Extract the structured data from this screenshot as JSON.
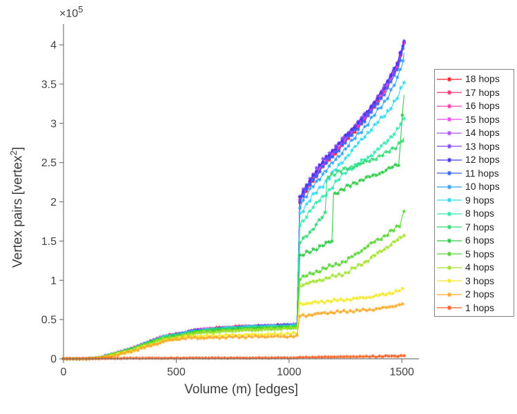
{
  "axes": {
    "xlabel": "Volume (m) [edges]",
    "ylabel_main": "Vertex pairs [vertex",
    "ylabel_sup": "2",
    "ylabel_close": "]",
    "exponent_label": "×10",
    "exponent_power": "5"
  },
  "chart_data": {
    "type": "line",
    "title": "",
    "xlabel": "Volume (m) [edges]",
    "ylabel": "Vertex pairs [vertex^2]",
    "y_scale_factor": "1e5",
    "xlim": [
      0,
      1576
    ],
    "ylim": [
      0,
      4.264
    ],
    "grid": false,
    "legend_position": "right",
    "marker": "asterisk",
    "xticks": [
      0,
      500,
      1000,
      1500
    ],
    "yticks": [
      0,
      0.5,
      1,
      1.5,
      2,
      2.5,
      3,
      3.5,
      4
    ],
    "base_curve": [
      [
        0,
        0
      ],
      [
        100,
        0
      ],
      [
        150,
        0.01
      ],
      [
        200,
        0.04
      ],
      [
        250,
        0.08
      ],
      [
        300,
        0.12
      ],
      [
        345,
        0.17
      ],
      [
        400,
        0.23
      ],
      [
        450,
        0.28
      ],
      [
        520,
        0.31
      ],
      [
        575,
        0.35
      ],
      [
        650,
        0.37
      ],
      [
        720,
        0.385
      ],
      [
        800,
        0.4
      ],
      [
        900,
        0.41
      ],
      [
        1000,
        0.42
      ],
      [
        1035,
        0.425
      ]
    ],
    "series": [
      {
        "hops": 18,
        "label": "18 hops",
        "color": "#fa1e28",
        "pre_factor": 1.018,
        "post": [
          [
            1048,
            2.0
          ],
          [
            1100,
            2.26
          ],
          [
            1150,
            2.45
          ],
          [
            1250,
            2.77
          ],
          [
            1350,
            3.1
          ],
          [
            1430,
            3.44
          ],
          [
            1480,
            3.72
          ],
          [
            1510,
            4.02
          ]
        ]
      },
      {
        "hops": 17,
        "label": "17 hops",
        "color": "#fa2e6e",
        "pre_factor": 1.016,
        "post": [
          [
            1048,
            2.01
          ],
          [
            1100,
            2.27
          ],
          [
            1150,
            2.46
          ],
          [
            1250,
            2.78
          ],
          [
            1350,
            3.11
          ],
          [
            1430,
            3.45
          ],
          [
            1480,
            3.73
          ],
          [
            1510,
            4.02
          ]
        ]
      },
      {
        "hops": 16,
        "label": "16 hops",
        "color": "#f53ab4",
        "pre_factor": 1.014,
        "post": [
          [
            1048,
            2.02
          ],
          [
            1100,
            2.28
          ],
          [
            1150,
            2.47
          ],
          [
            1250,
            2.79
          ],
          [
            1350,
            3.12
          ],
          [
            1430,
            3.46
          ],
          [
            1480,
            3.74
          ],
          [
            1510,
            4.03
          ]
        ]
      },
      {
        "hops": 15,
        "label": "15 hops",
        "color": "#ee46ee",
        "pre_factor": 1.012,
        "post": [
          [
            1048,
            2.03
          ],
          [
            1100,
            2.29
          ],
          [
            1150,
            2.48
          ],
          [
            1250,
            2.8
          ],
          [
            1350,
            3.13
          ],
          [
            1430,
            3.47
          ],
          [
            1480,
            3.74
          ],
          [
            1510,
            4.03
          ]
        ]
      },
      {
        "hops": 14,
        "label": "14 hops",
        "color": "#ae4ef5",
        "pre_factor": 1.01,
        "post": [
          [
            1048,
            2.04
          ],
          [
            1100,
            2.3
          ],
          [
            1150,
            2.5
          ],
          [
            1250,
            2.82
          ],
          [
            1350,
            3.14
          ],
          [
            1430,
            3.48
          ],
          [
            1480,
            3.75
          ],
          [
            1510,
            4.04
          ]
        ]
      },
      {
        "hops": 13,
        "label": "13 hops",
        "color": "#7c42f5",
        "pre_factor": 1.008,
        "post": [
          [
            1048,
            2.06
          ],
          [
            1100,
            2.32
          ],
          [
            1150,
            2.52
          ],
          [
            1250,
            2.84
          ],
          [
            1350,
            3.16
          ],
          [
            1430,
            3.5
          ],
          [
            1480,
            3.77
          ],
          [
            1510,
            4.05
          ]
        ]
      },
      {
        "hops": 12,
        "label": "12 hops",
        "color": "#4334f0",
        "pre_factor": 1.005,
        "post": [
          [
            1048,
            2.05
          ],
          [
            1100,
            2.31
          ],
          [
            1150,
            2.51
          ],
          [
            1250,
            2.83
          ],
          [
            1350,
            3.15
          ],
          [
            1430,
            3.49
          ],
          [
            1480,
            3.78
          ],
          [
            1505,
            4.0
          ],
          [
            1510,
            4.06
          ]
        ]
      },
      {
        "hops": 11,
        "label": "11 hops",
        "color": "#2e62f8",
        "pre_factor": 1.0,
        "post": [
          [
            1048,
            2.0
          ],
          [
            1100,
            2.26
          ],
          [
            1150,
            2.45
          ],
          [
            1250,
            2.77
          ],
          [
            1350,
            3.09
          ],
          [
            1430,
            3.41
          ],
          [
            1480,
            3.68
          ],
          [
            1505,
            3.94
          ],
          [
            1510,
            4.0
          ]
        ]
      },
      {
        "hops": 10,
        "label": "10 hops",
        "color": "#2e9ff2",
        "pre_factor": 0.995,
        "post": [
          [
            1048,
            1.95
          ],
          [
            1100,
            2.18
          ],
          [
            1150,
            2.36
          ],
          [
            1250,
            2.68
          ],
          [
            1350,
            3.0
          ],
          [
            1430,
            3.3
          ],
          [
            1480,
            3.56
          ],
          [
            1505,
            3.8
          ],
          [
            1510,
            3.9
          ]
        ]
      },
      {
        "hops": 9,
        "label": "9 hops",
        "color": "#2ed9f0",
        "pre_factor": 0.99,
        "post": [
          [
            1048,
            1.85
          ],
          [
            1100,
            2.06
          ],
          [
            1150,
            2.22
          ],
          [
            1250,
            2.56
          ],
          [
            1350,
            2.88
          ],
          [
            1430,
            3.12
          ],
          [
            1480,
            3.32
          ],
          [
            1510,
            3.52
          ]
        ]
      },
      {
        "hops": 8,
        "label": "8 hops",
        "color": "#2ee9ae",
        "pre_factor": 0.985,
        "post": [
          [
            1048,
            1.7
          ],
          [
            1100,
            1.92
          ],
          [
            1150,
            2.06
          ],
          [
            1250,
            2.38
          ],
          [
            1350,
            2.56
          ],
          [
            1430,
            2.75
          ],
          [
            1480,
            2.92
          ],
          [
            1510,
            3.06
          ]
        ]
      },
      {
        "hops": 7,
        "label": "7 hops",
        "color": "#2ed874",
        "pre_factor": 0.975,
        "post": [
          [
            1048,
            1.48
          ],
          [
            1100,
            1.64
          ],
          [
            1160,
            1.84
          ],
          [
            1168,
            2.32
          ],
          [
            1250,
            2.42
          ],
          [
            1350,
            2.52
          ],
          [
            1430,
            2.62
          ],
          [
            1480,
            2.72
          ],
          [
            1510,
            2.82
          ]
        ]
      },
      {
        "hops": 6,
        "label": "6 hops",
        "color": "#25c93e",
        "pre_factor": 0.96,
        "post": [
          [
            1048,
            1.3
          ],
          [
            1100,
            1.38
          ],
          [
            1150,
            1.44
          ],
          [
            1190,
            1.5
          ],
          [
            1197,
            2.1
          ],
          [
            1250,
            2.18
          ],
          [
            1300,
            2.26
          ],
          [
            1350,
            2.31
          ],
          [
            1430,
            2.4
          ],
          [
            1486,
            2.48
          ],
          [
            1494,
            2.76
          ],
          [
            1502,
            3.1
          ],
          [
            1510,
            3.36
          ]
        ]
      },
      {
        "hops": 5,
        "label": "5 hops",
        "color": "#55d42e",
        "pre_factor": 0.94,
        "post": [
          [
            1048,
            1.02
          ],
          [
            1100,
            1.08
          ],
          [
            1150,
            1.14
          ],
          [
            1250,
            1.24
          ],
          [
            1350,
            1.44
          ],
          [
            1430,
            1.58
          ],
          [
            1490,
            1.7
          ],
          [
            1500,
            1.8
          ],
          [
            1510,
            1.88
          ]
        ]
      },
      {
        "hops": 4,
        "label": "4 hops",
        "color": "#a2e22c",
        "pre_factor": 0.92,
        "post": [
          [
            1048,
            0.93
          ],
          [
            1100,
            0.97
          ],
          [
            1150,
            1.01
          ],
          [
            1250,
            1.09
          ],
          [
            1350,
            1.26
          ],
          [
            1430,
            1.42
          ],
          [
            1510,
            1.57
          ]
        ]
      },
      {
        "hops": 3,
        "label": "3 hops",
        "color": "#f4e822",
        "points": [
          [
            0,
            0
          ],
          [
            100,
            0
          ],
          [
            150,
            0.008
          ],
          [
            200,
            0.032
          ],
          [
            250,
            0.065
          ],
          [
            300,
            0.1
          ],
          [
            345,
            0.14
          ],
          [
            400,
            0.19
          ],
          [
            450,
            0.235
          ],
          [
            520,
            0.27
          ],
          [
            575,
            0.285
          ],
          [
            650,
            0.295
          ],
          [
            720,
            0.3
          ],
          [
            800,
            0.305
          ],
          [
            900,
            0.31
          ],
          [
            1000,
            0.315
          ],
          [
            1035,
            0.32
          ],
          [
            1048,
            0.7
          ],
          [
            1150,
            0.73
          ],
          [
            1250,
            0.75
          ],
          [
            1350,
            0.78
          ],
          [
            1430,
            0.82
          ],
          [
            1510,
            0.88
          ]
        ]
      },
      {
        "hops": 2,
        "label": "2 hops",
        "color": "#f8a826",
        "points": [
          [
            0,
            0
          ],
          [
            100,
            0
          ],
          [
            150,
            0.008
          ],
          [
            200,
            0.03
          ],
          [
            250,
            0.06
          ],
          [
            300,
            0.095
          ],
          [
            345,
            0.135
          ],
          [
            400,
            0.18
          ],
          [
            450,
            0.225
          ],
          [
            520,
            0.255
          ],
          [
            575,
            0.265
          ],
          [
            650,
            0.27
          ],
          [
            720,
            0.275
          ],
          [
            800,
            0.278
          ],
          [
            900,
            0.28
          ],
          [
            1000,
            0.282
          ],
          [
            1035,
            0.285
          ],
          [
            1048,
            0.55
          ],
          [
            1150,
            0.58
          ],
          [
            1250,
            0.6
          ],
          [
            1350,
            0.62
          ],
          [
            1430,
            0.65
          ],
          [
            1510,
            0.7
          ]
        ]
      },
      {
        "hops": 1,
        "label": "1 hops",
        "color": "#f75c1e",
        "points": [
          [
            0,
            0
          ],
          [
            150,
            0.005
          ],
          [
            400,
            0.008
          ],
          [
            700,
            0.01
          ],
          [
            1035,
            0.012
          ],
          [
            1048,
            0.018
          ],
          [
            1250,
            0.025
          ],
          [
            1400,
            0.032
          ],
          [
            1510,
            0.04
          ]
        ]
      }
    ]
  }
}
